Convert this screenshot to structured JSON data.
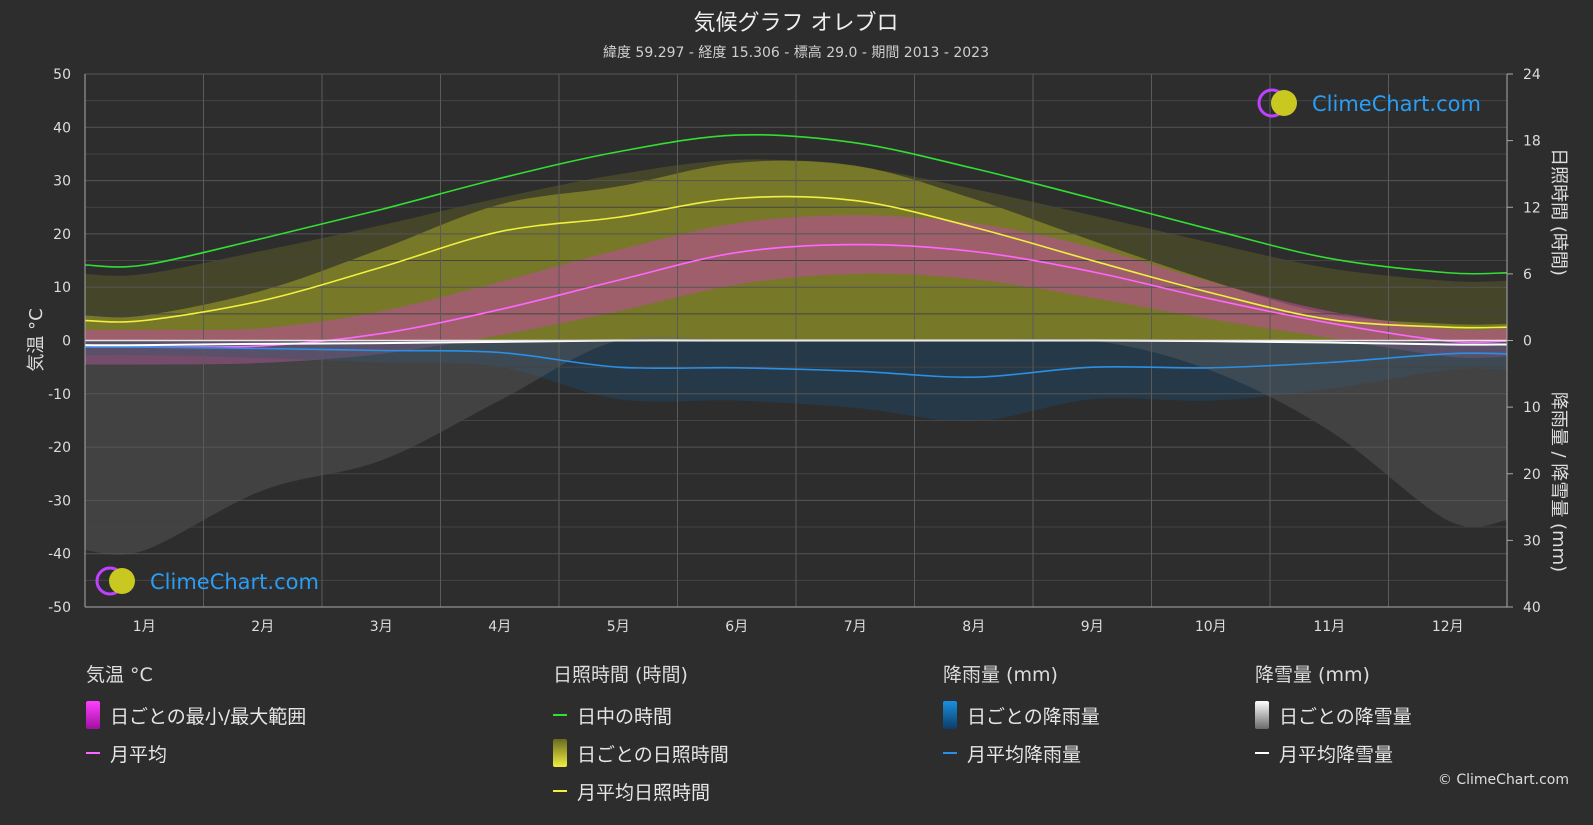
{
  "title": "気候グラフ オレブロ",
  "subtitle": "緯度 59.297 - 経度 15.306 - 標高 29.0 - 期間 2013 - 2023",
  "watermark_text": "ClimeChart.com",
  "copyright": "© ClimeChart.com",
  "axes": {
    "left_label": "気温 °C",
    "right_top_label": "日照時間 (時間)",
    "right_bottom_label": "降雨量 / 降雪量 (mm)"
  },
  "legend": {
    "temperature": {
      "title": "気温 °C",
      "items": [
        {
          "label": "日ごとの最小/最大範囲",
          "kind": "box",
          "color": "#e020e0"
        },
        {
          "label": "月平均",
          "kind": "line",
          "color": "#ff66ff"
        }
      ]
    },
    "sunshine": {
      "title": "日照時間 (時間)",
      "items": [
        {
          "label": "日中の時間",
          "kind": "line",
          "color": "#33dd33"
        },
        {
          "label": "日ごとの日照時間",
          "kind": "box",
          "color": "#d6d62a"
        },
        {
          "label": "月平均日照時間",
          "kind": "line",
          "color": "#f0f040"
        }
      ]
    },
    "rain": {
      "title": "降雨量 (mm)",
      "items": [
        {
          "label": "日ごとの降雨量",
          "kind": "box",
          "color": "#1a8fe0"
        },
        {
          "label": "月平均降雨量",
          "kind": "line",
          "color": "#2a8fe6"
        }
      ]
    },
    "snow": {
      "title": "降雪量 (mm)",
      "items": [
        {
          "label": "日ごとの降雪量",
          "kind": "box",
          "color": "#e6e6e6"
        },
        {
          "label": "月平均降雪量",
          "kind": "line",
          "color": "#ffffff"
        }
      ]
    }
  },
  "chart_data": {
    "type": "line",
    "categories": [
      "1月",
      "2月",
      "3月",
      "4月",
      "5月",
      "6月",
      "7月",
      "8月",
      "9月",
      "10月",
      "11月",
      "12月"
    ],
    "left_axis": {
      "ticks": [
        50,
        40,
        30,
        20,
        10,
        0,
        -10,
        -20,
        -30,
        -40,
        -50
      ],
      "ylim": [
        -50,
        50
      ],
      "unit": "°C"
    },
    "right_axis_sunshine": {
      "ticks": [
        24,
        18,
        12,
        6,
        0
      ],
      "ylim": [
        0,
        24
      ]
    },
    "right_axis_precip": {
      "ticks": [
        0,
        10,
        20,
        30,
        40
      ],
      "ylim": [
        0,
        40
      ]
    },
    "grid": true,
    "series": [
      {
        "name": "日中の時間",
        "axis": "sunshine",
        "color": "#33dd33",
        "values": [
          6.8,
          9.2,
          11.8,
          14.6,
          17.0,
          18.5,
          17.8,
          15.5,
          12.8,
          10.0,
          7.4,
          6.1
        ]
      },
      {
        "name": "月平均日照時間",
        "axis": "sunshine",
        "color": "#f0f040",
        "values": [
          1.8,
          3.6,
          6.6,
          9.8,
          11.1,
          12.8,
          12.6,
          10.2,
          7.2,
          4.3,
          1.9,
          1.2
        ]
      },
      {
        "name": "月平均",
        "axis": "temperature",
        "color": "#ff66ff",
        "values": [
          -1.2,
          -1.0,
          1.3,
          5.8,
          11.3,
          16.5,
          18.0,
          16.7,
          12.9,
          7.8,
          3.3,
          -0.1
        ]
      },
      {
        "name": "月平均降雨量",
        "axis": "precip",
        "color": "#2a8fe6",
        "values": [
          1.0,
          1.2,
          1.5,
          1.8,
          4.0,
          4.1,
          4.6,
          5.5,
          4.0,
          4.1,
          3.3,
          2.0
        ]
      },
      {
        "name": "月平均降雪量",
        "axis": "precip",
        "color": "#ffffff",
        "values": [
          0.7,
          0.5,
          0.4,
          0.2,
          0.0,
          0.0,
          0.0,
          0.0,
          0.0,
          0.1,
          0.3,
          0.6
        ]
      }
    ],
    "daily_temperature_band": {
      "name": "日ごとの最小/最大範囲",
      "min": [
        -4.5,
        -4.2,
        -2.5,
        1.0,
        5.5,
        10.5,
        12.5,
        11.5,
        8.0,
        4.0,
        0.5,
        -3.0
      ],
      "max": [
        2.0,
        2.3,
        5.5,
        11.0,
        17.0,
        22.0,
        23.5,
        22.0,
        17.5,
        11.0,
        5.5,
        2.2
      ]
    }
  }
}
